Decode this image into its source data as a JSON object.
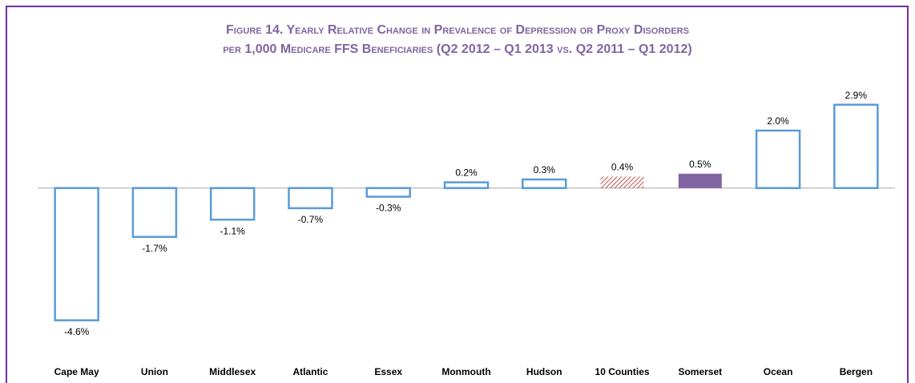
{
  "chart_data": {
    "type": "bar",
    "title": [
      "Figure 14. Yearly Relative Change in Prevalence of Depression or Proxy Disorders",
      "per 1,000 Medicare FFS Beneficiaries (Q2 2012 – Q1 2013 vs. Q2 2011 – Q1 2012)"
    ],
    "categories": [
      "Cape May",
      "Union",
      "Middlesex",
      "Atlantic",
      "Essex",
      "Monmouth",
      "Hudson",
      "10 Counties",
      "Somerset",
      "Ocean",
      "Bergen"
    ],
    "values": [
      -4.6,
      -1.7,
      -1.1,
      -0.7,
      -0.3,
      0.2,
      0.3,
      0.4,
      0.5,
      2.0,
      2.9
    ],
    "value_labels": [
      "-4.6%",
      "-1.7%",
      "-1.1%",
      "-0.7%",
      "-0.3%",
      "0.2%",
      "0.3%",
      "0.4%",
      "0.5%",
      "2.0%",
      "2.9%"
    ],
    "colors": [
      "#5b9bd5",
      "#5b9bd5",
      "#5b9bd5",
      "#5b9bd5",
      "#5b9bd5",
      "#5b9bd5",
      "#5b9bd5",
      "#c0504d",
      "#8064a2",
      "#5b9bd5",
      "#5b9bd5"
    ],
    "bar_styles": [
      "outline",
      "outline",
      "outline",
      "outline",
      "outline",
      "outline",
      "outline",
      "hatched",
      "solid",
      "outline",
      "outline"
    ],
    "ylim": [
      -5.5,
      3.7
    ]
  }
}
